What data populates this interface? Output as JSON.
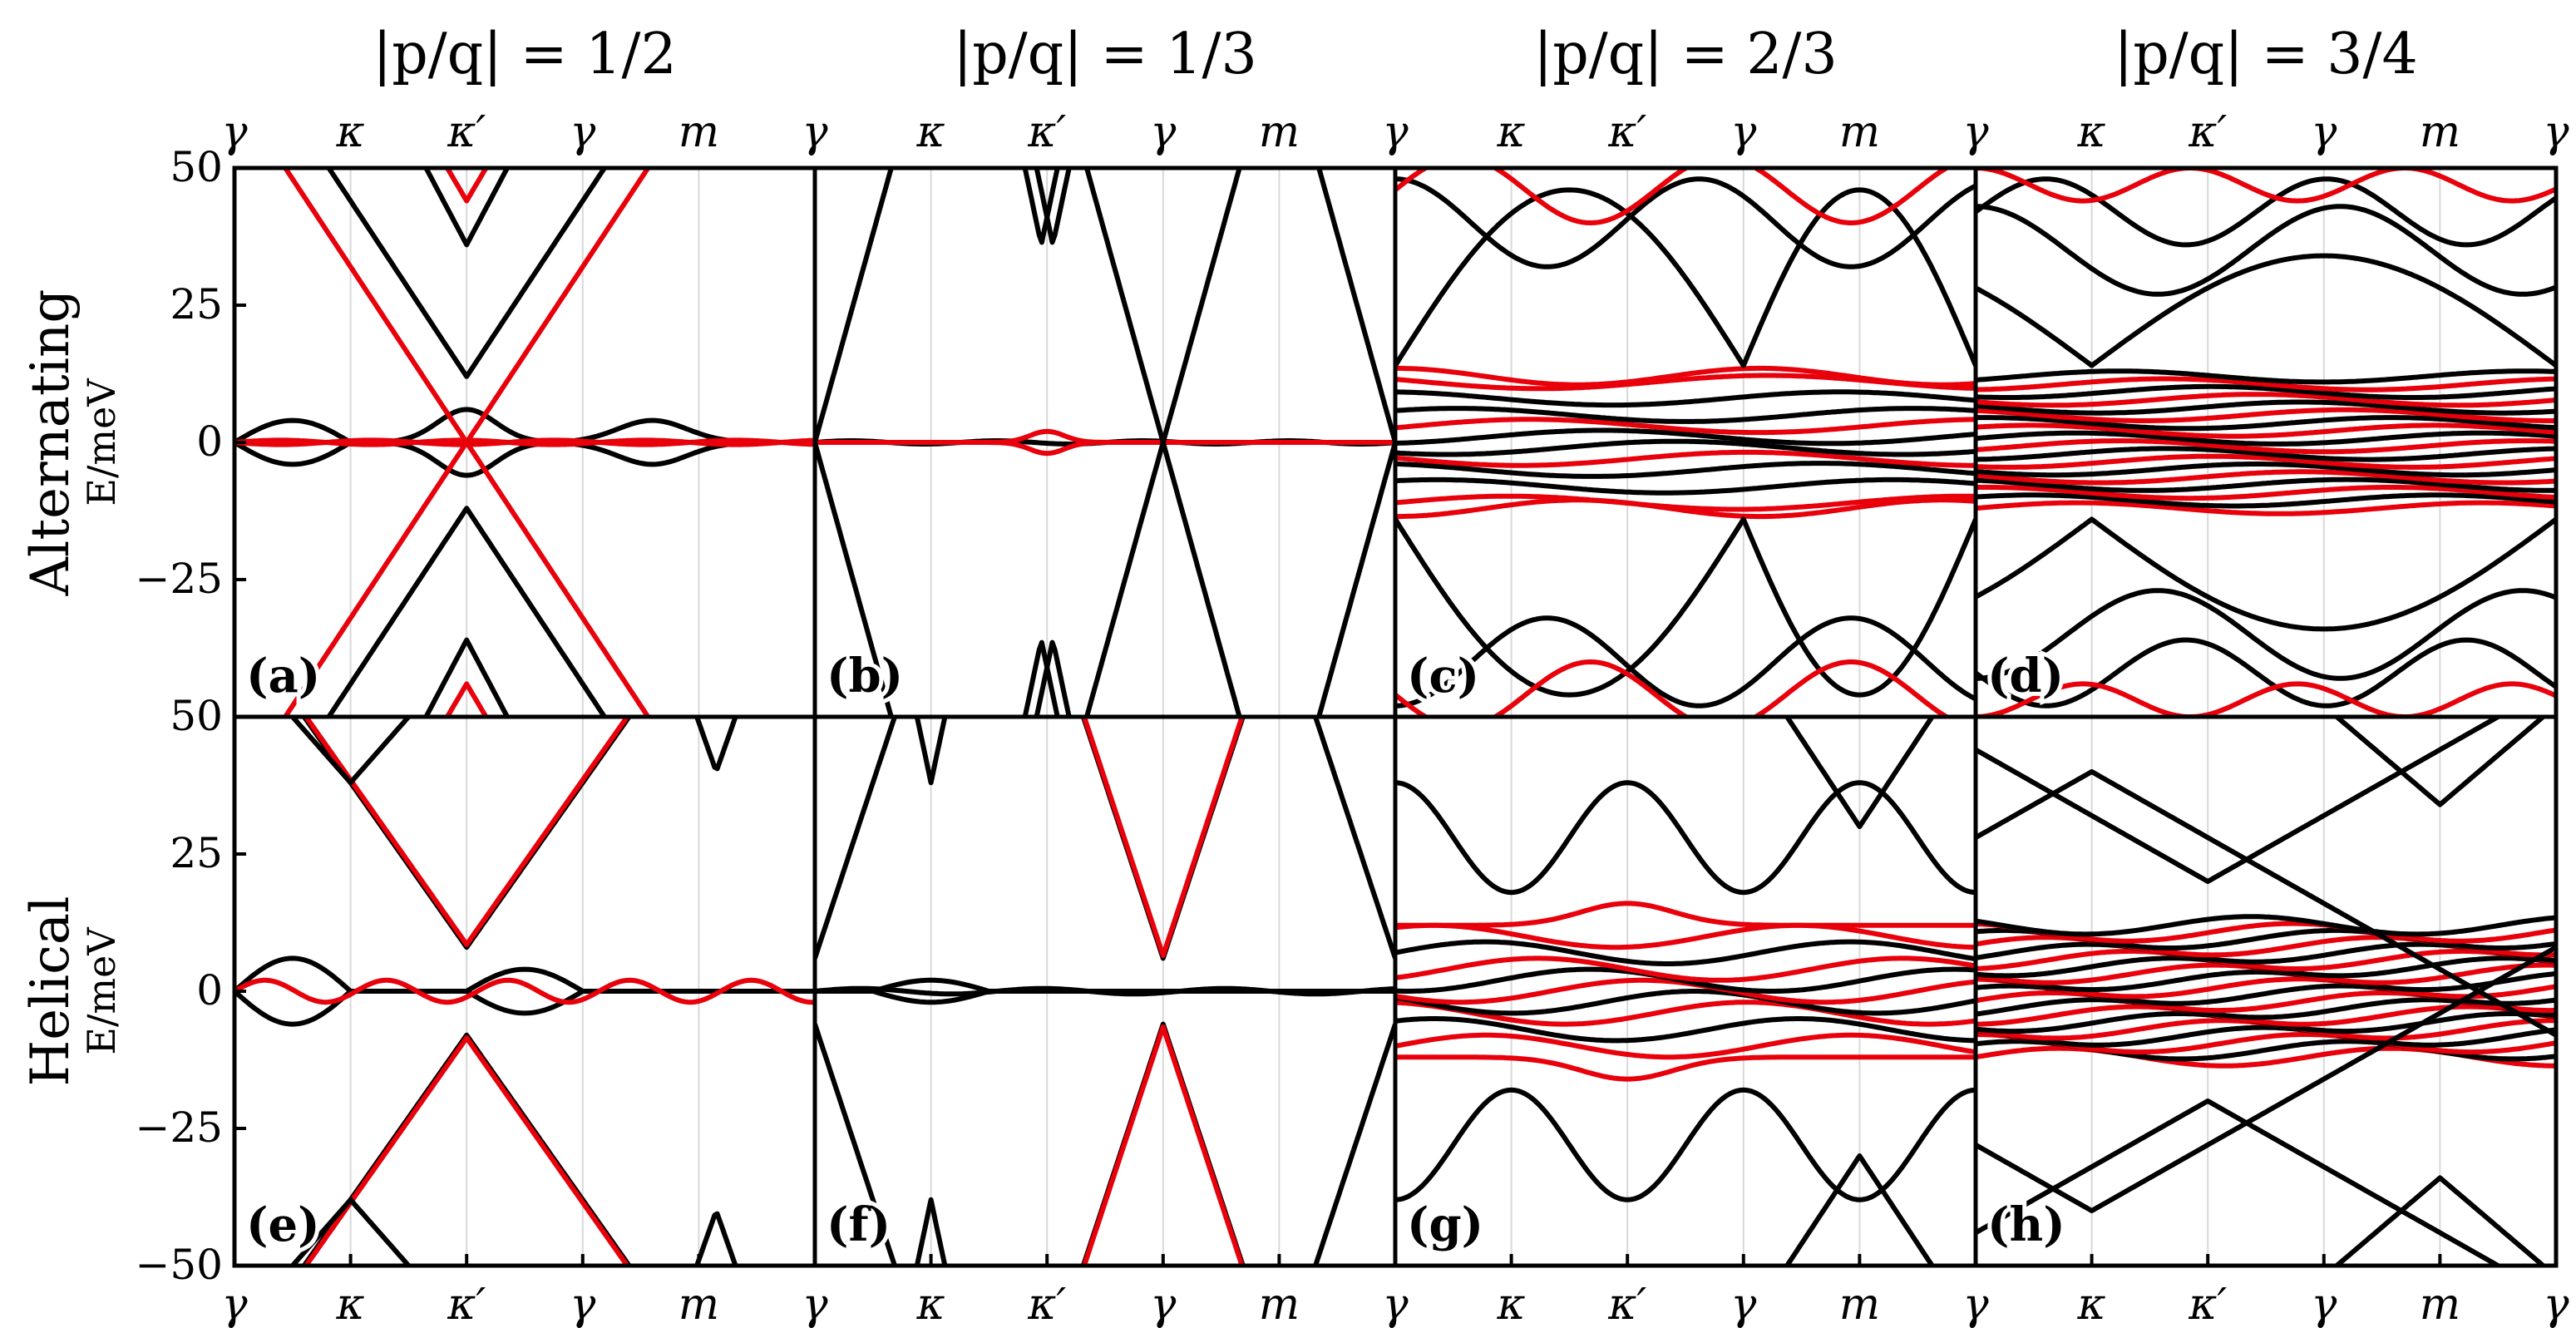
{
  "chart_data": {
    "type": "line",
    "description_rows": [
      "Alternating",
      "Helical"
    ],
    "row_ylabel": "E/meV",
    "column_titles": [
      "|p/q| = 1/2",
      "|p/q| = 1/3",
      "|p/q| = 2/3",
      "|p/q| = 3/4"
    ],
    "x_ticks": [
      "γ",
      "κ",
      "κ′",
      "γ",
      "m",
      "γ"
    ],
    "y_ticks": [
      -50,
      -25,
      0,
      25,
      50
    ],
    "ylim": [
      -50,
      50
    ],
    "series_colors": {
      "red": "#e8000b",
      "black": "#000000"
    },
    "panels": [
      {
        "label": "(a)",
        "row": 0,
        "col": 0,
        "kind": "a"
      },
      {
        "label": "(b)",
        "row": 0,
        "col": 1,
        "kind": "b"
      },
      {
        "label": "(c)",
        "row": 0,
        "col": 2,
        "kind": "c"
      },
      {
        "label": "(d)",
        "row": 0,
        "col": 3,
        "kind": "d"
      },
      {
        "label": "(e)",
        "row": 1,
        "col": 0,
        "kind": "e"
      },
      {
        "label": "(f)",
        "row": 1,
        "col": 1,
        "kind": "f"
      },
      {
        "label": "(g)",
        "row": 1,
        "col": 2,
        "kind": "g"
      },
      {
        "label": "(h)",
        "row": 1,
        "col": 3,
        "kind": "h"
      }
    ]
  }
}
